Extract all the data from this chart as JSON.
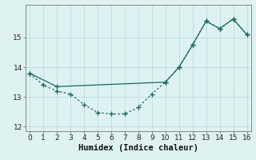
{
  "xlabel": "Humidex (Indice chaleur)",
  "line_dotted_x": [
    0,
    1,
    2,
    3,
    4,
    5,
    6,
    7,
    8,
    9,
    10,
    11,
    12,
    13,
    14,
    15,
    16
  ],
  "line_dotted_y": [
    13.8,
    13.4,
    13.2,
    13.1,
    12.75,
    12.48,
    12.43,
    12.43,
    12.65,
    13.1,
    13.5,
    14.0,
    14.75,
    15.55,
    15.3,
    15.62,
    15.1
  ],
  "line_solid_x": [
    0,
    2,
    10,
    11,
    12,
    13,
    14,
    15,
    16
  ],
  "line_solid_y": [
    13.8,
    13.35,
    13.5,
    14.0,
    14.75,
    15.55,
    15.3,
    15.62,
    15.1
  ],
  "ylim": [
    11.85,
    16.1
  ],
  "xlim": [
    -0.3,
    16.3
  ],
  "yticks": [
    12,
    13,
    14,
    15
  ],
  "xticks": [
    0,
    1,
    2,
    3,
    4,
    5,
    6,
    7,
    8,
    9,
    10,
    11,
    12,
    13,
    14,
    15,
    16
  ],
  "line_color": "#1a6b5e",
  "bg_color": "#dff2f2",
  "grid_color": "#b8dede",
  "markersize": 3.0,
  "xlabel_fontsize": 7.5
}
